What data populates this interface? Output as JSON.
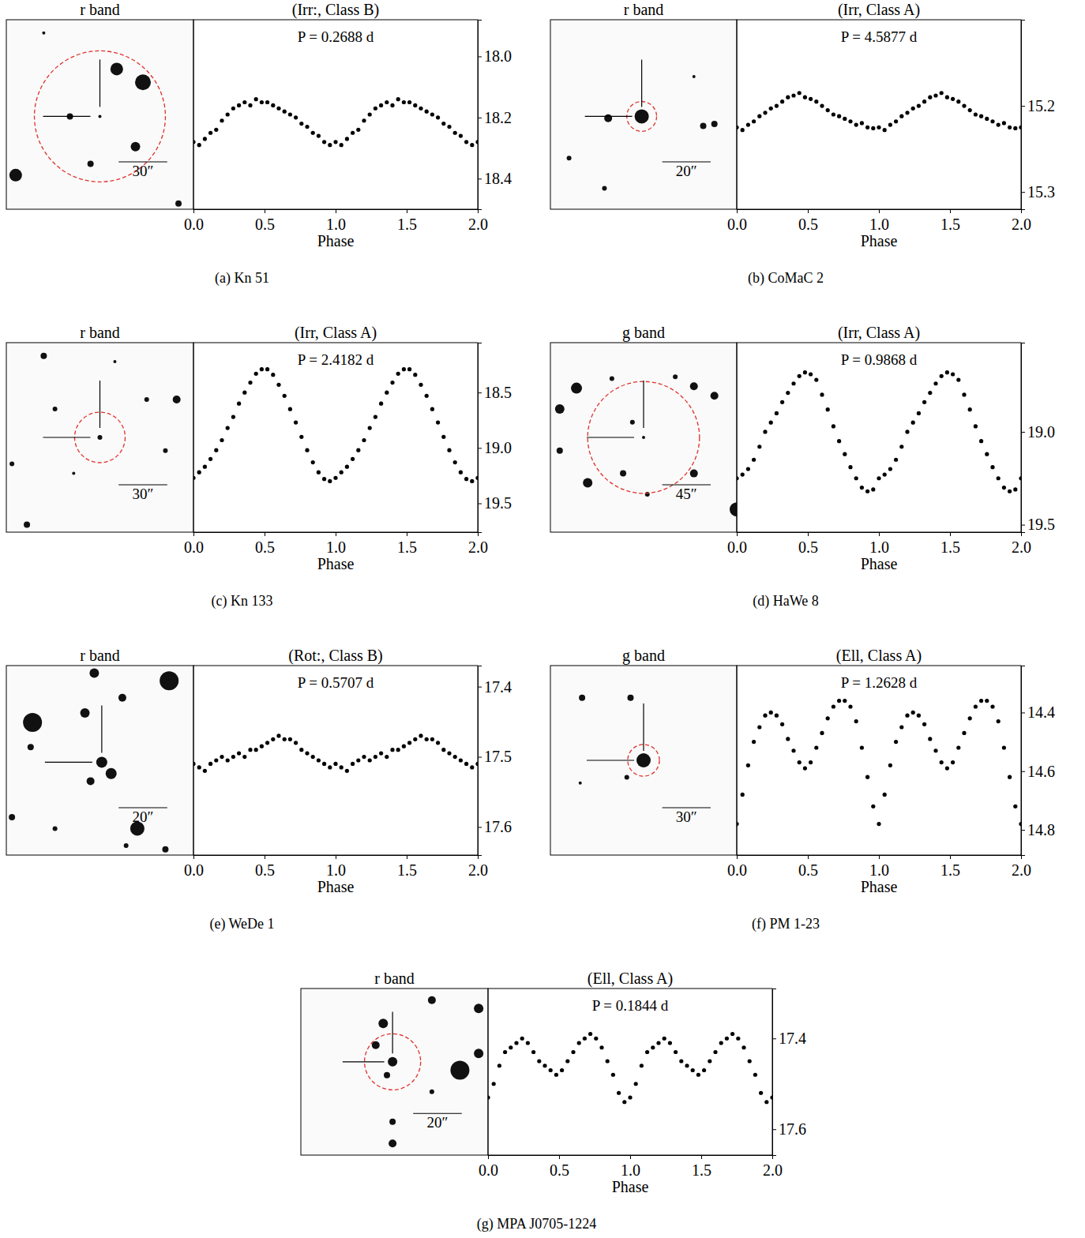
{
  "chart_data": [
    {
      "type": "scatter",
      "title": "(Irr:, Class B)",
      "caption": "(a) Kn 51",
      "annotations": {
        "image_label": "r band",
        "scale_bar": "30″",
        "period": "P = 0.2688 d"
      },
      "x_label": "Phase",
      "xlim": [
        0,
        2
      ],
      "xticks": [
        {
          "value": 0,
          "label": "0.0"
        },
        0.5,
        {
          "value": 1,
          "label": "1.0"
        },
        1.5,
        {
          "value": 2,
          "label": "2.0"
        }
      ],
      "ylim": [
        18.5,
        17.88
      ],
      "yticks": [
        {
          "value": 18,
          "label": "18.0"
        },
        18.2,
        18.4
      ],
      "color": "#000000",
      "marker": "circle",
      "x": [
        0,
        0.04,
        0.08,
        0.12,
        0.16,
        0.2,
        0.24,
        0.28,
        0.32,
        0.36,
        0.4,
        0.44,
        0.48,
        0.52,
        0.56,
        0.6,
        0.64,
        0.68,
        0.72,
        0.76,
        0.8,
        0.84,
        0.88,
        0.92,
        0.96,
        1,
        1.04,
        1.08,
        1.12,
        1.16,
        1.2,
        1.24,
        1.28,
        1.32,
        1.36,
        1.4,
        1.44,
        1.48,
        1.52,
        1.56,
        1.6,
        1.64,
        1.68,
        1.72,
        1.76,
        1.8,
        1.84,
        1.88,
        1.92,
        1.96,
        2
      ],
      "values": [
        18.28,
        18.29,
        18.27,
        18.25,
        18.24,
        18.21,
        18.19,
        18.17,
        18.16,
        18.15,
        18.16,
        18.14,
        18.15,
        18.15,
        18.16,
        18.17,
        18.18,
        18.19,
        18.2,
        18.22,
        18.23,
        18.25,
        18.26,
        18.28,
        18.29,
        18.28,
        18.29,
        18.27,
        18.25,
        18.24,
        18.21,
        18.19,
        18.17,
        18.16,
        18.15,
        18.16,
        18.14,
        18.15,
        18.15,
        18.16,
        18.17,
        18.18,
        18.19,
        18.2,
        18.22,
        18.23,
        18.25,
        18.26,
        18.28,
        18.29,
        18.28
      ]
    },
    {
      "type": "scatter",
      "title": "(Irr, Class A)",
      "caption": "(b) CoMaC 2",
      "annotations": {
        "image_label": "r band",
        "scale_bar": "20″",
        "period": "P = 4.5877 d"
      },
      "x_label": "Phase",
      "xlim": [
        0,
        2
      ],
      "xticks": [
        {
          "value": 0,
          "label": "0.0"
        },
        0.5,
        {
          "value": 1,
          "label": "1.0"
        },
        1.5,
        {
          "value": 2,
          "label": "2.0"
        }
      ],
      "ylim": [
        15.32,
        15.1
      ],
      "yticks": [
        15.2,
        15.3
      ],
      "color": "#000000",
      "marker": "circle",
      "x": [
        0,
        0.04,
        0.08,
        0.12,
        0.16,
        0.2,
        0.24,
        0.28,
        0.32,
        0.36,
        0.4,
        0.44,
        0.48,
        0.52,
        0.56,
        0.6,
        0.64,
        0.68,
        0.72,
        0.76,
        0.8,
        0.84,
        0.88,
        0.92,
        0.96,
        1,
        1.04,
        1.08,
        1.12,
        1.16,
        1.2,
        1.24,
        1.28,
        1.32,
        1.36,
        1.4,
        1.44,
        1.48,
        1.52,
        1.56,
        1.6,
        1.64,
        1.68,
        1.72,
        1.76,
        1.8,
        1.84,
        1.88,
        1.92,
        1.96,
        2
      ],
      "values": [
        15.225,
        15.228,
        15.222,
        15.218,
        15.212,
        15.208,
        15.203,
        15.2,
        15.195,
        15.19,
        15.188,
        15.185,
        15.19,
        15.192,
        15.195,
        15.2,
        15.205,
        15.21,
        15.212,
        15.215,
        15.218,
        15.222,
        15.22,
        15.225,
        15.226,
        15.225,
        15.228,
        15.222,
        15.218,
        15.212,
        15.208,
        15.203,
        15.2,
        15.195,
        15.19,
        15.188,
        15.185,
        15.19,
        15.192,
        15.195,
        15.2,
        15.205,
        15.21,
        15.212,
        15.215,
        15.218,
        15.222,
        15.22,
        15.225,
        15.226,
        15.225
      ]
    },
    {
      "type": "scatter",
      "title": "(Irr, Class A)",
      "caption": "(c) Kn 133",
      "annotations": {
        "image_label": "r band",
        "scale_bar": "30″",
        "period": "P = 2.4182 d"
      },
      "x_label": "Phase",
      "xlim": [
        0,
        2
      ],
      "xticks": [
        {
          "value": 0,
          "label": "0.0"
        },
        0.5,
        {
          "value": 1,
          "label": "1.0"
        },
        1.5,
        {
          "value": 2,
          "label": "2.0"
        }
      ],
      "ylim": [
        19.76,
        18.05
      ],
      "yticks": [
        18.5,
        {
          "value": 19,
          "label": "19.0"
        },
        19.5
      ],
      "color": "#000000",
      "marker": "circle",
      "x": [
        0,
        0.04,
        0.08,
        0.12,
        0.16,
        0.2,
        0.24,
        0.28,
        0.32,
        0.36,
        0.4,
        0.44,
        0.48,
        0.52,
        0.56,
        0.6,
        0.64,
        0.68,
        0.72,
        0.76,
        0.8,
        0.84,
        0.88,
        0.92,
        0.96,
        1,
        1.04,
        1.08,
        1.12,
        1.16,
        1.2,
        1.24,
        1.28,
        1.32,
        1.36,
        1.4,
        1.44,
        1.48,
        1.52,
        1.56,
        1.6,
        1.64,
        1.68,
        1.72,
        1.76,
        1.8,
        1.84,
        1.88,
        1.92,
        1.96,
        2
      ],
      "values": [
        19.27,
        19.22,
        19.17,
        19.1,
        19.02,
        18.93,
        18.82,
        18.72,
        18.6,
        18.5,
        18.41,
        18.33,
        18.29,
        18.29,
        18.34,
        18.43,
        18.53,
        18.65,
        18.77,
        18.9,
        19.02,
        19.13,
        19.22,
        19.28,
        19.3,
        19.27,
        19.22,
        19.17,
        19.1,
        19.02,
        18.93,
        18.82,
        18.72,
        18.6,
        18.5,
        18.41,
        18.33,
        18.29,
        18.29,
        18.34,
        18.43,
        18.53,
        18.65,
        18.77,
        18.9,
        19.02,
        19.13,
        19.22,
        19.28,
        19.3,
        19.27
      ]
    },
    {
      "type": "scatter",
      "title": "(Irr, Class A)",
      "caption": "(d) HaWe 8",
      "annotations": {
        "image_label": "g band",
        "scale_bar": "45″",
        "period": "P = 0.9868 d"
      },
      "x_label": "Phase",
      "xlim": [
        0,
        2
      ],
      "xticks": [
        {
          "value": 0,
          "label": "0.0"
        },
        0.5,
        {
          "value": 1,
          "label": "1.0"
        },
        1.5,
        {
          "value": 2,
          "label": "2.0"
        }
      ],
      "ylim": [
        19.54,
        18.52
      ],
      "yticks": [
        {
          "value": 19,
          "label": "19.0"
        },
        19.5
      ],
      "color": "#000000",
      "marker": "circle",
      "x": [
        0,
        0.04,
        0.08,
        0.12,
        0.16,
        0.2,
        0.24,
        0.28,
        0.32,
        0.36,
        0.4,
        0.44,
        0.48,
        0.52,
        0.56,
        0.6,
        0.64,
        0.68,
        0.72,
        0.76,
        0.8,
        0.84,
        0.88,
        0.92,
        0.96,
        1,
        1.04,
        1.08,
        1.12,
        1.16,
        1.2,
        1.24,
        1.28,
        1.32,
        1.36,
        1.4,
        1.44,
        1.48,
        1.52,
        1.56,
        1.6,
        1.64,
        1.68,
        1.72,
        1.76,
        1.8,
        1.84,
        1.88,
        1.92,
        1.96,
        2
      ],
      "values": [
        19.25,
        19.23,
        19.2,
        19.15,
        19.08,
        19.0,
        18.95,
        18.9,
        18.84,
        18.79,
        18.74,
        18.7,
        18.68,
        18.69,
        18.72,
        18.8,
        18.88,
        18.97,
        19.05,
        19.12,
        19.19,
        19.25,
        19.3,
        19.32,
        19.31,
        19.25,
        19.23,
        19.2,
        19.15,
        19.08,
        19.0,
        18.95,
        18.9,
        18.84,
        18.79,
        18.74,
        18.7,
        18.68,
        18.69,
        18.72,
        18.8,
        18.88,
        18.97,
        19.05,
        19.12,
        19.19,
        19.25,
        19.3,
        19.32,
        19.31,
        19.25
      ]
    },
    {
      "type": "scatter",
      "title": "(Rot:, Class B)",
      "caption": "(e) WeDe 1",
      "annotations": {
        "image_label": "r band",
        "scale_bar": "20″",
        "period": "P = 0.5707 d"
      },
      "x_label": "Phase",
      "xlim": [
        0,
        2
      ],
      "xticks": [
        {
          "value": 0,
          "label": "0.0"
        },
        0.5,
        {
          "value": 1,
          "label": "1.0"
        },
        1.5,
        {
          "value": 2,
          "label": "2.0"
        }
      ],
      "ylim": [
        17.64,
        17.37
      ],
      "yticks": [
        17.4,
        17.5,
        17.6
      ],
      "color": "#000000",
      "marker": "circle",
      "x": [
        0,
        0.04,
        0.08,
        0.12,
        0.16,
        0.2,
        0.24,
        0.28,
        0.32,
        0.36,
        0.4,
        0.44,
        0.48,
        0.52,
        0.56,
        0.6,
        0.64,
        0.68,
        0.72,
        0.76,
        0.8,
        0.84,
        0.88,
        0.92,
        0.96,
        1,
        1.04,
        1.08,
        1.12,
        1.16,
        1.2,
        1.24,
        1.28,
        1.32,
        1.36,
        1.4,
        1.44,
        1.48,
        1.52,
        1.56,
        1.6,
        1.64,
        1.68,
        1.72,
        1.76,
        1.8,
        1.84,
        1.88,
        1.92,
        1.96,
        2
      ],
      "values": [
        17.51,
        17.515,
        17.52,
        17.51,
        17.505,
        17.5,
        17.505,
        17.5,
        17.495,
        17.5,
        17.49,
        17.49,
        17.485,
        17.48,
        17.475,
        17.47,
        17.475,
        17.475,
        17.48,
        17.49,
        17.495,
        17.5,
        17.505,
        17.51,
        17.515,
        17.51,
        17.515,
        17.52,
        17.51,
        17.505,
        17.5,
        17.505,
        17.5,
        17.495,
        17.5,
        17.49,
        17.49,
        17.485,
        17.48,
        17.475,
        17.47,
        17.475,
        17.475,
        17.48,
        17.49,
        17.495,
        17.5,
        17.505,
        17.51,
        17.515,
        17.51
      ]
    },
    {
      "type": "scatter",
      "title": "(Ell, Class A)",
      "caption": "(f) PM 1-23",
      "annotations": {
        "image_label": "g band",
        "scale_bar": "30″",
        "period": "P = 1.2628 d"
      },
      "x_label": "Phase",
      "xlim": [
        0,
        2
      ],
      "xticks": [
        {
          "value": 0,
          "label": "0.0"
        },
        0.5,
        {
          "value": 1,
          "label": "1.0"
        },
        1.5,
        {
          "value": 2,
          "label": "2.0"
        }
      ],
      "ylim": [
        14.886,
        14.24
      ],
      "yticks": [
        14.4,
        14.6,
        14.8
      ],
      "color": "#000000",
      "marker": "circle",
      "x": [
        0,
        0.04,
        0.08,
        0.12,
        0.16,
        0.2,
        0.24,
        0.28,
        0.32,
        0.36,
        0.4,
        0.44,
        0.48,
        0.52,
        0.56,
        0.6,
        0.64,
        0.68,
        0.72,
        0.76,
        0.8,
        0.84,
        0.88,
        0.92,
        0.96,
        1,
        1.04,
        1.08,
        1.12,
        1.16,
        1.2,
        1.24,
        1.28,
        1.32,
        1.36,
        1.4,
        1.44,
        1.48,
        1.52,
        1.56,
        1.6,
        1.64,
        1.68,
        1.72,
        1.76,
        1.8,
        1.84,
        1.88,
        1.92,
        1.96,
        2
      ],
      "values": [
        14.78,
        14.68,
        14.58,
        14.5,
        14.45,
        14.41,
        14.4,
        14.41,
        14.44,
        14.49,
        14.53,
        14.57,
        14.59,
        14.57,
        14.52,
        14.47,
        14.42,
        14.38,
        14.36,
        14.36,
        14.38,
        14.43,
        14.52,
        14.62,
        14.72,
        14.78,
        14.68,
        14.58,
        14.5,
        14.45,
        14.41,
        14.4,
        14.41,
        14.44,
        14.49,
        14.53,
        14.57,
        14.59,
        14.57,
        14.52,
        14.47,
        14.42,
        14.38,
        14.36,
        14.36,
        14.38,
        14.43,
        14.52,
        14.62,
        14.72,
        14.78
      ]
    },
    {
      "type": "scatter",
      "title": "(Ell, Class A)",
      "caption": "(g) MPA J0705-1224",
      "annotations": {
        "image_label": "r band",
        "scale_bar": "20″",
        "period": "P = 0.1844 d"
      },
      "x_label": "Phase",
      "xlim": [
        0,
        2
      ],
      "xticks": [
        {
          "value": 0,
          "label": "0.0"
        },
        0.5,
        {
          "value": 1,
          "label": "1.0"
        },
        1.5,
        {
          "value": 2,
          "label": "2.0"
        }
      ],
      "ylim": [
        17.657,
        17.29
      ],
      "yticks": [
        17.4,
        17.6
      ],
      "color": "#000000",
      "marker": "circle",
      "x": [
        0,
        0.04,
        0.08,
        0.12,
        0.16,
        0.2,
        0.24,
        0.28,
        0.32,
        0.36,
        0.4,
        0.44,
        0.48,
        0.52,
        0.56,
        0.6,
        0.64,
        0.68,
        0.72,
        0.76,
        0.8,
        0.84,
        0.88,
        0.92,
        0.96,
        1,
        1.04,
        1.08,
        1.12,
        1.16,
        1.2,
        1.24,
        1.28,
        1.32,
        1.36,
        1.4,
        1.44,
        1.48,
        1.52,
        1.56,
        1.6,
        1.64,
        1.68,
        1.72,
        1.76,
        1.8,
        1.84,
        1.88,
        1.92,
        1.96,
        2
      ],
      "values": [
        17.53,
        17.5,
        17.46,
        17.43,
        17.42,
        17.41,
        17.4,
        17.41,
        17.43,
        17.45,
        17.46,
        17.47,
        17.48,
        17.47,
        17.45,
        17.43,
        17.41,
        17.4,
        17.39,
        17.4,
        17.42,
        17.45,
        17.48,
        17.52,
        17.54,
        17.53,
        17.5,
        17.46,
        17.43,
        17.42,
        17.41,
        17.4,
        17.41,
        17.43,
        17.45,
        17.46,
        17.47,
        17.48,
        17.47,
        17.45,
        17.43,
        17.41,
        17.4,
        17.39,
        17.4,
        17.42,
        17.45,
        17.48,
        17.52,
        17.54,
        17.53
      ]
    }
  ]
}
